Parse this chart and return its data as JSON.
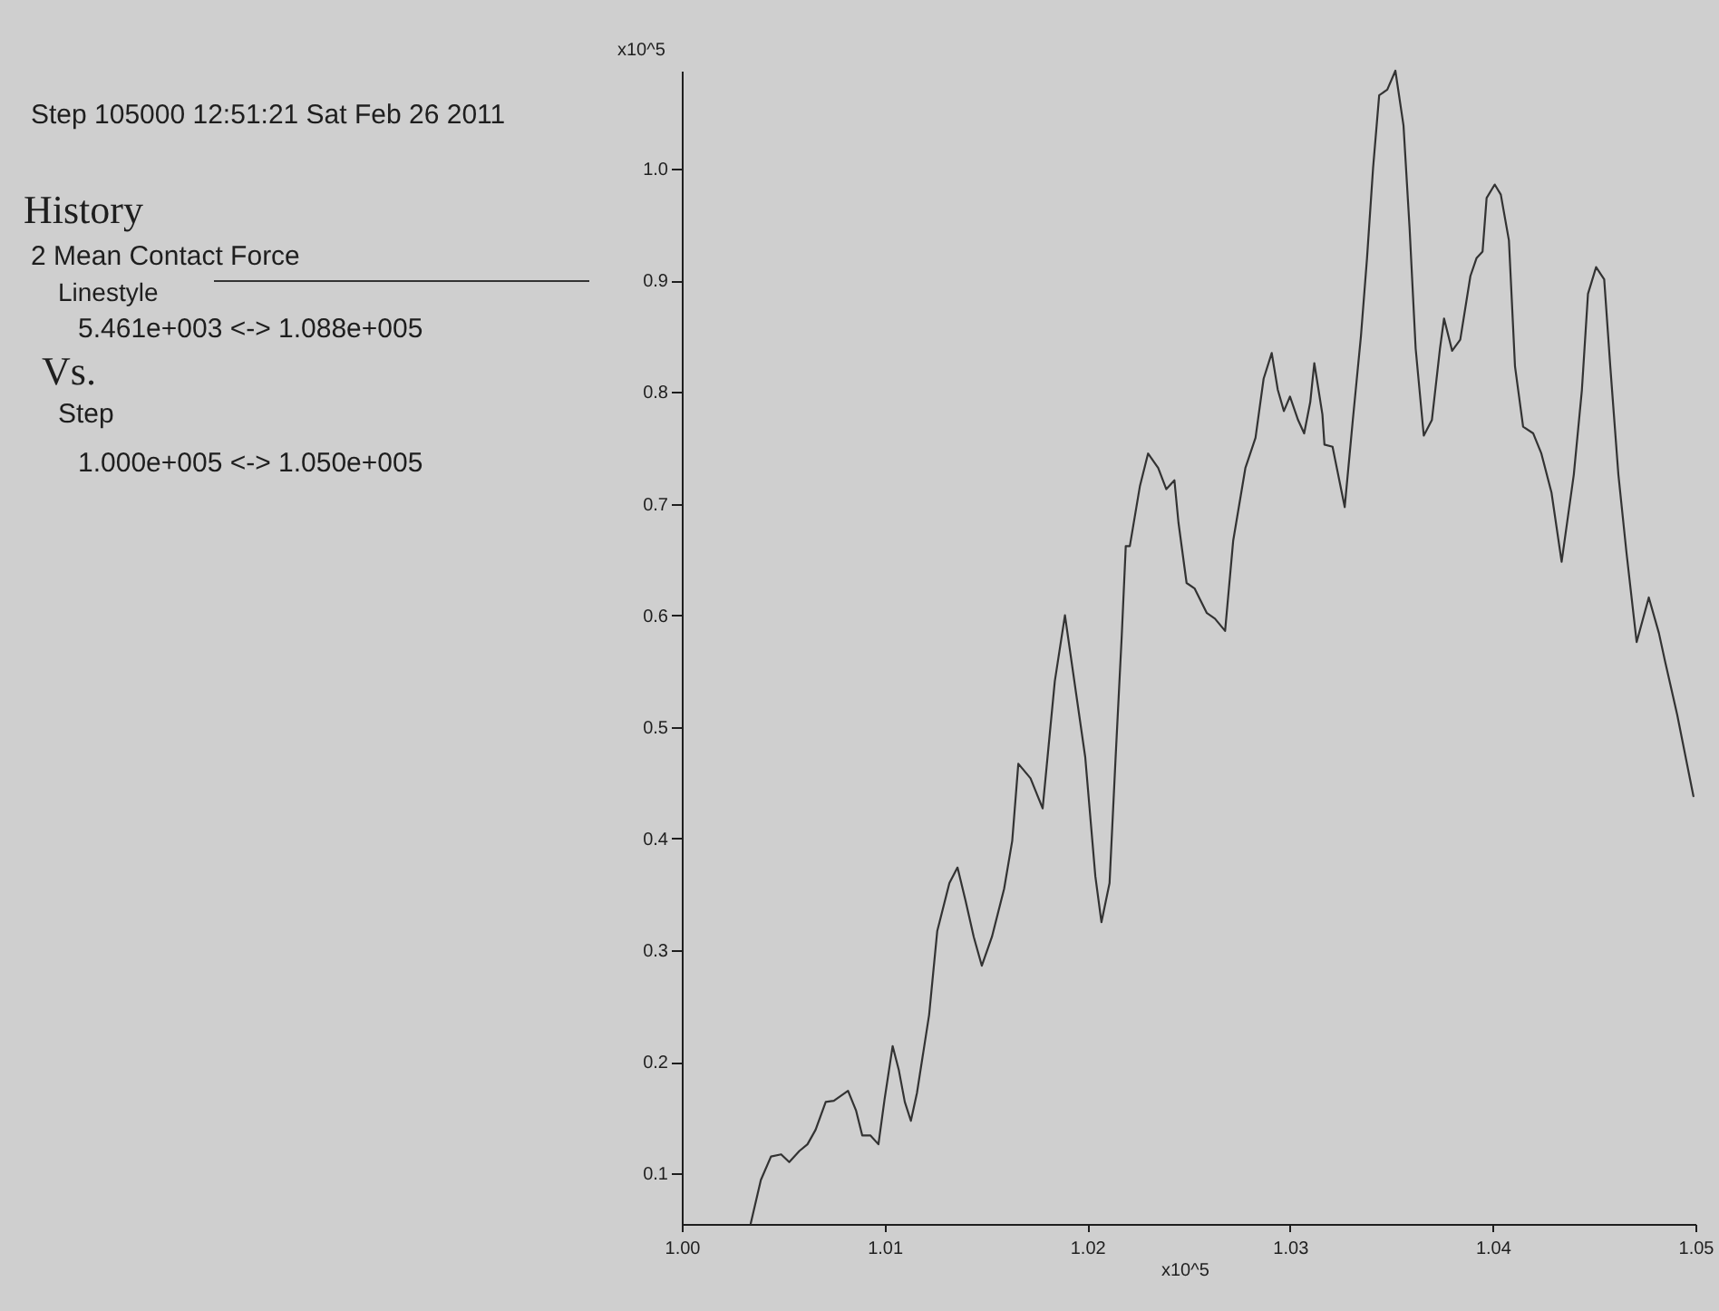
{
  "chart_data": {
    "type": "line",
    "subtitle": "Step 105000 12:51:21 Sat Feb 26 2011",
    "xlabel": "x10^5",
    "ylabel": "x10^5",
    "legend_title": "History",
    "legend": "left",
    "annotations": [
      "Linestyle",
      "5.461e+003 <-> 1.088e+005",
      "Vs.",
      "Step",
      "1.000e+005 <-> 1.050e+005"
    ],
    "x": [
      1.0034,
      1.0039,
      1.0044,
      1.0049,
      1.0053,
      1.0058,
      1.0062,
      1.0066,
      1.0071,
      1.0075,
      1.0082,
      1.0086,
      1.0089,
      1.0093,
      1.0097,
      1.01,
      1.0104,
      1.0107,
      1.011,
      1.0113,
      1.0116,
      1.0122,
      1.0126,
      1.0132,
      1.0136,
      1.014,
      1.0144,
      1.0148,
      1.0153,
      1.0159,
      1.0163,
      1.0166,
      1.0172,
      1.0178,
      1.0181,
      1.0184,
      1.0189,
      1.0193,
      1.0199,
      1.0204,
      1.0207,
      1.0211,
      1.0214,
      1.0217,
      1.0219,
      1.0221,
      1.0226,
      1.023,
      1.0235,
      1.0239,
      1.0243,
      1.0245,
      1.0249,
      1.0253,
      1.0259,
      1.0263,
      1.0268,
      1.0272,
      1.0278,
      1.0283,
      1.0287,
      1.0291,
      1.0294,
      1.0297,
      1.03,
      1.0304,
      1.0307,
      1.031,
      1.0312,
      1.0316,
      1.0317,
      1.0321,
      1.0327,
      1.0331,
      1.0335,
      1.0338,
      1.0341,
      1.0344,
      1.0348,
      1.0352,
      1.0356,
      1.0359,
      1.0362,
      1.0366,
      1.037,
      1.0374,
      1.0376,
      1.038,
      1.0384,
      1.0389,
      1.0392,
      1.0395,
      1.0397,
      1.0401,
      1.0404,
      1.0408,
      1.0411,
      1.0415,
      1.042,
      1.0424,
      1.0429,
      1.0434,
      1.044,
      1.0444,
      1.0447,
      1.0451,
      1.0455,
      1.0458,
      1.0462,
      1.0466,
      1.0471,
      1.0477,
      1.0482,
      1.0485,
      1.0491,
      1.0499
    ],
    "series": [
      {
        "name": "2 Mean Contact Force",
        "color": "#333333",
        "line_style": "solid",
        "values": [
          0.055,
          0.094,
          0.115,
          0.117,
          0.11,
          0.12,
          0.126,
          0.139,
          0.164,
          0.165,
          0.174,
          0.156,
          0.134,
          0.134,
          0.126,
          0.166,
          0.214,
          0.193,
          0.164,
          0.147,
          0.172,
          0.242,
          0.317,
          0.36,
          0.374,
          0.344,
          0.312,
          0.286,
          0.312,
          0.355,
          0.398,
          0.467,
          0.454,
          0.427,
          0.484,
          0.541,
          0.6,
          0.549,
          0.473,
          0.366,
          0.325,
          0.36,
          0.473,
          0.581,
          0.662,
          0.662,
          0.716,
          0.745,
          0.732,
          0.713,
          0.721,
          0.683,
          0.629,
          0.624,
          0.602,
          0.597,
          0.586,
          0.667,
          0.732,
          0.759,
          0.812,
          0.835,
          0.802,
          0.783,
          0.796,
          0.775,
          0.763,
          0.791,
          0.826,
          0.78,
          0.753,
          0.751,
          0.697,
          0.775,
          0.85,
          0.92,
          1.001,
          1.066,
          1.071,
          1.088,
          1.039,
          0.947,
          0.839,
          0.761,
          0.775,
          0.839,
          0.866,
          0.837,
          0.847,
          0.904,
          0.92,
          0.926,
          0.974,
          0.986,
          0.977,
          0.936,
          0.823,
          0.769,
          0.763,
          0.745,
          0.71,
          0.648,
          0.726,
          0.802,
          0.888,
          0.912,
          0.901,
          0.823,
          0.726,
          0.656,
          0.576,
          0.616,
          0.584,
          0.559,
          0.511,
          0.438
        ]
      }
    ],
    "xlim": [
      1.0,
      1.05
    ],
    "ylim": [
      0.05461,
      1.088
    ],
    "xticks": [
      {
        "value": 1.0,
        "label": "1.00"
      },
      1.01,
      1.02,
      1.03,
      1.04,
      1.05
    ],
    "yticks": [
      0.1,
      0.2,
      0.3,
      0.4,
      0.5,
      0.6,
      0.7,
      0.8,
      0.9,
      {
        "value": 1.0,
        "label": "1.0"
      }
    ]
  }
}
